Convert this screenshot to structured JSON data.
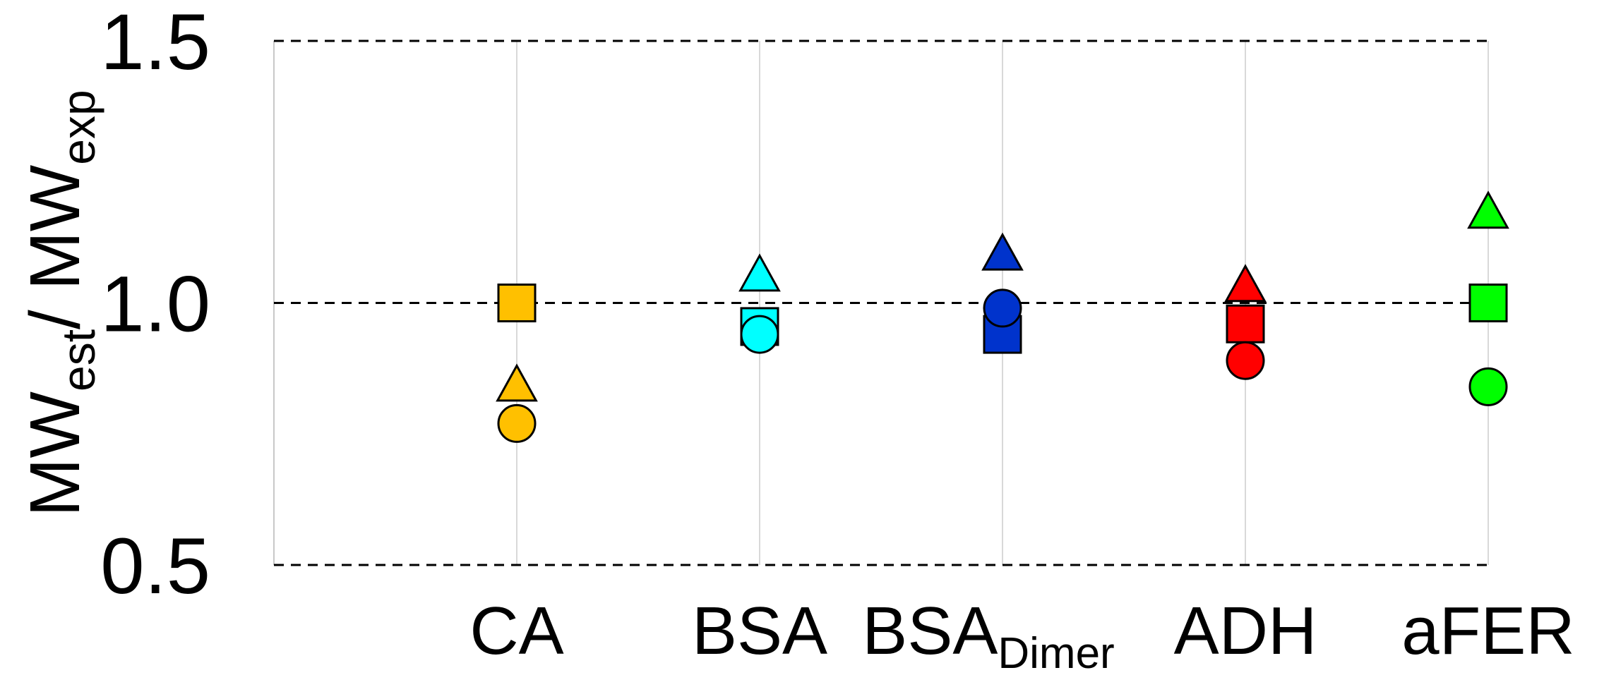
{
  "chart_data": {
    "type": "scatter",
    "ylabel": {
      "main1": "MW",
      "sub1": "est",
      "main2": "/ MW",
      "sub2": "exp"
    },
    "categories": [
      "CA",
      "BSA",
      {
        "text": "BSA",
        "subscript": "Dimer"
      },
      "ADH",
      "aFER"
    ],
    "colors": [
      "#ffc000",
      "#00ffff",
      "#0033cc",
      "#ff0000",
      "#00ff00"
    ],
    "series": [
      {
        "marker": "square",
        "values": [
          1.0,
          0.955,
          0.94,
          0.96,
          1.0
        ]
      },
      {
        "marker": "triangle",
        "values": [
          0.84,
          1.05,
          1.09,
          1.03,
          1.17
        ]
      },
      {
        "marker": "circle",
        "values": [
          0.77,
          0.94,
          0.99,
          0.89,
          0.84
        ]
      }
    ],
    "ylim": [
      0.5,
      1.5
    ],
    "yticks": [
      0.5,
      {
        "value": 1,
        "label": "1.0"
      },
      1.5
    ],
    "grid": true
  }
}
